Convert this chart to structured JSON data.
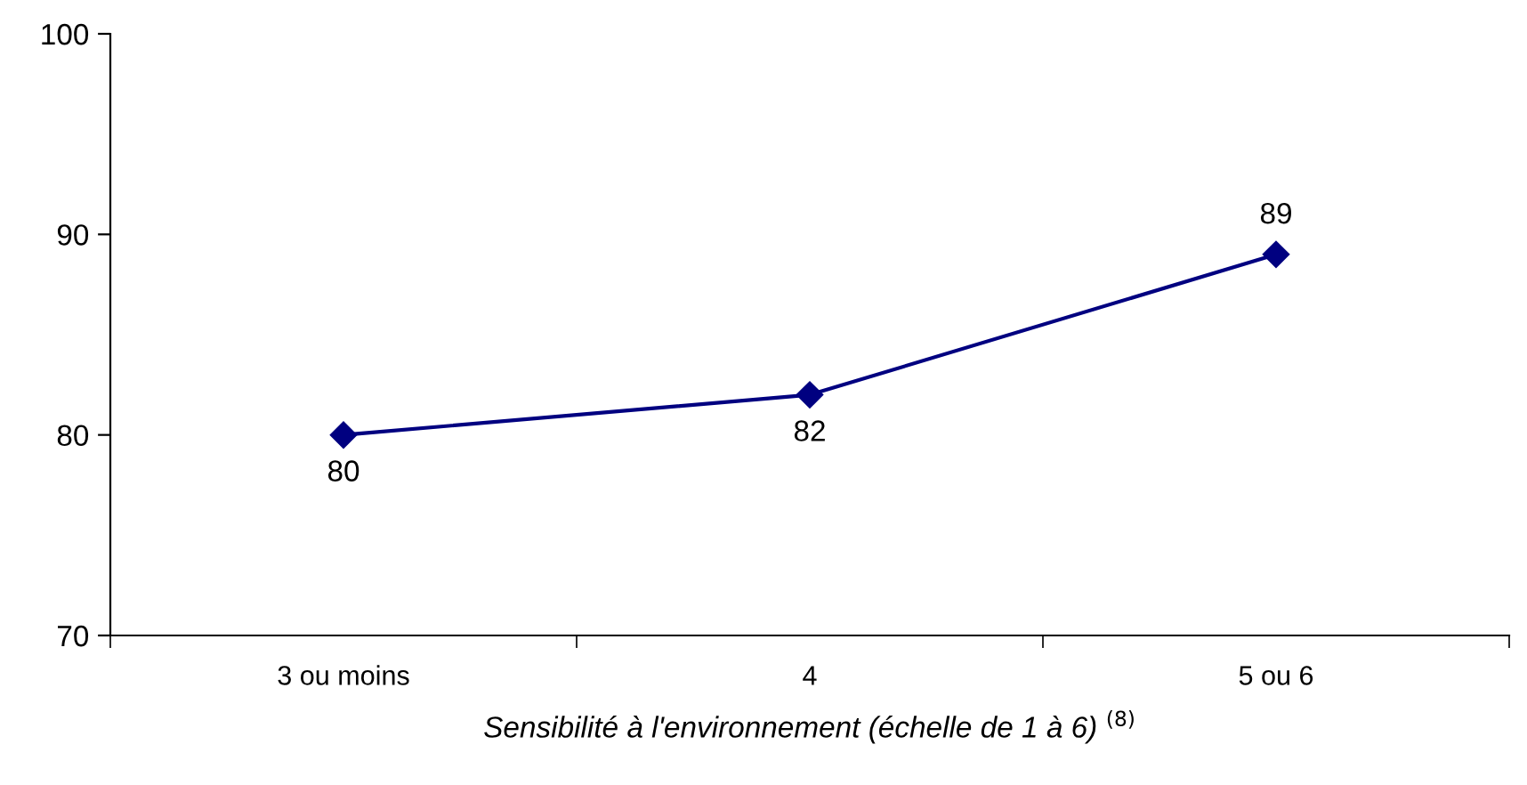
{
  "chart_data": {
    "type": "line",
    "xlabel": "Sensibilité à l'environnement (échelle de 1 à 6) $^{(8)}$",
    "categories": [
      "3 ou moins",
      "4",
      "5 ou 6"
    ],
    "series": [
      {
        "color": "#000080",
        "values": [
          80,
          82,
          89
        ]
      }
    ],
    "ylim": [
      70,
      100
    ],
    "yticks": [
      70,
      80,
      90,
      100
    ],
    "marker": "diamond",
    "line_style": "solid",
    "data_labels": true,
    "grid": false,
    "legend": false
  }
}
